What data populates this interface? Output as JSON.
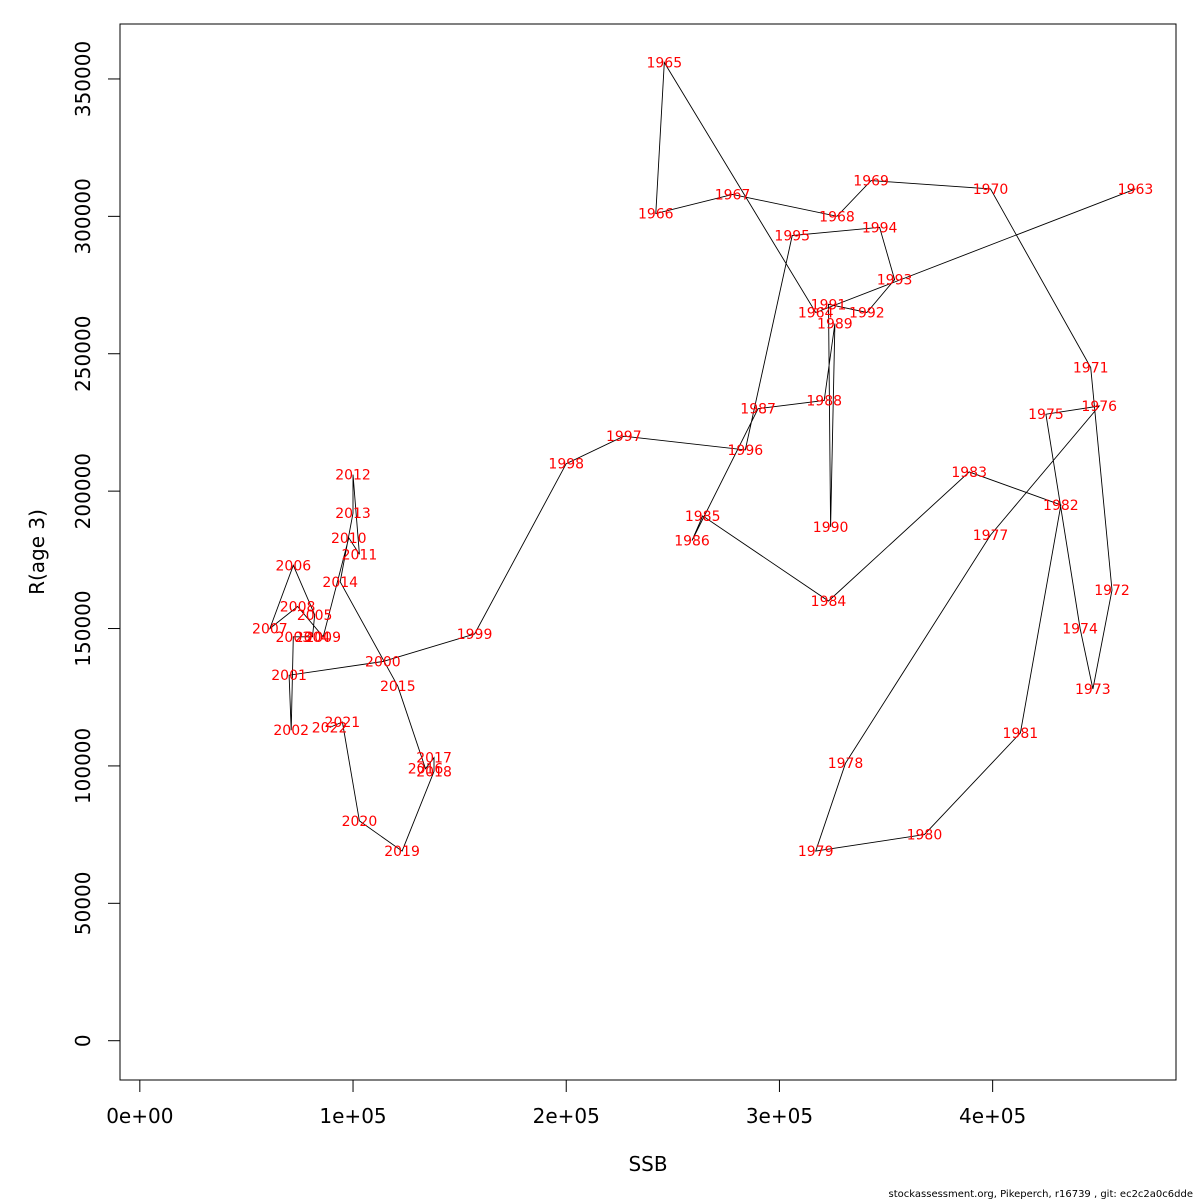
{
  "chart_data": {
    "type": "scatter",
    "xlabel": "SSB",
    "ylabel": "R(age 3)",
    "xlim": [
      -9300,
      486000
    ],
    "ylim": [
      -14300,
      370000
    ],
    "x_ticks": [
      0,
      100000,
      200000,
      300000,
      400000
    ],
    "x_tick_labels": [
      "0e+00",
      "1e+05",
      "2e+05",
      "3e+05",
      "4e+05"
    ],
    "y_ticks": [
      0,
      50000,
      100000,
      150000,
      200000,
      250000,
      300000,
      350000
    ],
    "y_tick_labels": [
      "0",
      "50000",
      "100000",
      "150000",
      "200000",
      "250000",
      "300000",
      "350000"
    ],
    "points": [
      {
        "year": "1963",
        "x": 467000,
        "y": 310000
      },
      {
        "year": "1964",
        "x": 317000,
        "y": 265000
      },
      {
        "year": "1965",
        "x": 246000,
        "y": 356000
      },
      {
        "year": "1966",
        "x": 242000,
        "y": 301000
      },
      {
        "year": "1967",
        "x": 278000,
        "y": 308000
      },
      {
        "year": "1968",
        "x": 327000,
        "y": 300000
      },
      {
        "year": "1969",
        "x": 343000,
        "y": 313000
      },
      {
        "year": "1970",
        "x": 399000,
        "y": 310000
      },
      {
        "year": "1971",
        "x": 446000,
        "y": 245000
      },
      {
        "year": "1972",
        "x": 456000,
        "y": 164000
      },
      {
        "year": "1973",
        "x": 447000,
        "y": 128000
      },
      {
        "year": "1974",
        "x": 441000,
        "y": 150000
      },
      {
        "year": "1975",
        "x": 425000,
        "y": 228000
      },
      {
        "year": "1976",
        "x": 450000,
        "y": 231000
      },
      {
        "year": "1977",
        "x": 399000,
        "y": 184000
      },
      {
        "year": "1978",
        "x": 331000,
        "y": 101000
      },
      {
        "year": "1979",
        "x": 317000,
        "y": 69000
      },
      {
        "year": "1980",
        "x": 368000,
        "y": 75000
      },
      {
        "year": "1981",
        "x": 413000,
        "y": 112000
      },
      {
        "year": "1982",
        "x": 432000,
        "y": 195000
      },
      {
        "year": "1983",
        "x": 389000,
        "y": 207000
      },
      {
        "year": "1984",
        "x": 323000,
        "y": 160000
      },
      {
        "year": "1985",
        "x": 264000,
        "y": 191000
      },
      {
        "year": "1986",
        "x": 259000,
        "y": 182000
      },
      {
        "year": "1987",
        "x": 290000,
        "y": 230000
      },
      {
        "year": "1988",
        "x": 321000,
        "y": 233000
      },
      {
        "year": "1989",
        "x": 326000,
        "y": 261000
      },
      {
        "year": "1990",
        "x": 324000,
        "y": 187000
      },
      {
        "year": "1991",
        "x": 323000,
        "y": 268000
      },
      {
        "year": "1992",
        "x": 341000,
        "y": 265000
      },
      {
        "year": "1993",
        "x": 354000,
        "y": 277000
      },
      {
        "year": "1994",
        "x": 347000,
        "y": 296000
      },
      {
        "year": "1995",
        "x": 306000,
        "y": 293000
      },
      {
        "year": "1996",
        "x": 284000,
        "y": 215000
      },
      {
        "year": "1997",
        "x": 227000,
        "y": 220000
      },
      {
        "year": "1998",
        "x": 200000,
        "y": 210000
      },
      {
        "year": "1999",
        "x": 157000,
        "y": 148000
      },
      {
        "year": "2000",
        "x": 114000,
        "y": 138000
      },
      {
        "year": "2001",
        "x": 70000,
        "y": 133000
      },
      {
        "year": "2002",
        "x": 71000,
        "y": 113000
      },
      {
        "year": "2003",
        "x": 72000,
        "y": 147000
      },
      {
        "year": "2004",
        "x": 81000,
        "y": 147000
      },
      {
        "year": "2005",
        "x": 82000,
        "y": 155000
      },
      {
        "year": "2006",
        "x": 72000,
        "y": 173000
      },
      {
        "year": "2007",
        "x": 61000,
        "y": 150000
      },
      {
        "year": "2008",
        "x": 74000,
        "y": 158000
      },
      {
        "year": "2009",
        "x": 86000,
        "y": 147000
      },
      {
        "year": "2010",
        "x": 98000,
        "y": 183000
      },
      {
        "year": "2011",
        "x": 103000,
        "y": 177000
      },
      {
        "year": "2012",
        "x": 100000,
        "y": 206000
      },
      {
        "year": "2013",
        "x": 100000,
        "y": 192000
      },
      {
        "year": "2014",
        "x": 94000,
        "y": 167000
      },
      {
        "year": "2015",
        "x": 121000,
        "y": 129000
      },
      {
        "year": "2016",
        "x": 134000,
        "y": 99000
      },
      {
        "year": "2017",
        "x": 138000,
        "y": 103000
      },
      {
        "year": "2018",
        "x": 138000,
        "y": 98000
      },
      {
        "year": "2019",
        "x": 123000,
        "y": 69000
      },
      {
        "year": "2020",
        "x": 103000,
        "y": 80000
      },
      {
        "year": "2021",
        "x": 95000,
        "y": 116000
      },
      {
        "year": "2022",
        "x": 89000,
        "y": 114000
      }
    ]
  },
  "footer": "stockassessment.org, Pikeperch, r16739 , git: ec2c2a0c6dde"
}
